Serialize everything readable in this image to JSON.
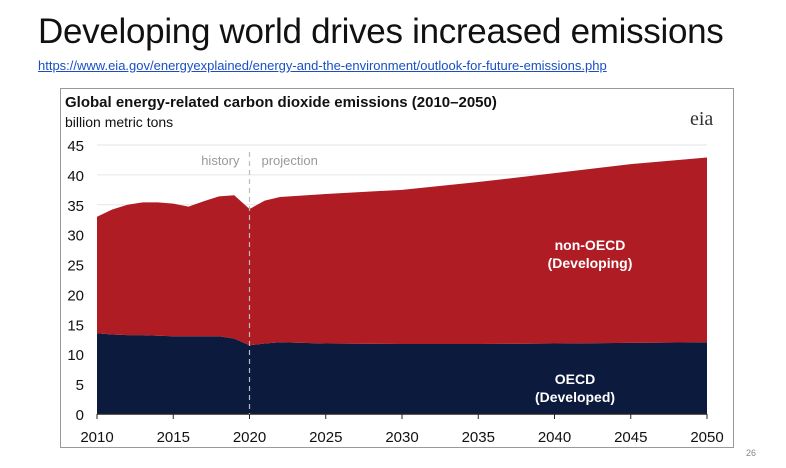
{
  "slide": {
    "title": "Developing world drives increased emissions",
    "link": "https://www.eia.gov/energyexplained/energy-and-the-environment/outlook-for-future-emissions.php",
    "page_number": "26"
  },
  "logo_text": "eia",
  "chart_data": {
    "type": "area",
    "stacked": true,
    "title": "Global energy-related carbon dioxide emissions (2010–2050)",
    "ylabel": "billion metric tons",
    "xlabel": "",
    "xlim": [
      2010,
      2050
    ],
    "ylim": [
      0,
      45
    ],
    "xticks": [
      "2010",
      "2015",
      "2020",
      "2025",
      "2030",
      "2035",
      "2040",
      "2045",
      "2050"
    ],
    "yticks": [
      "0",
      "5",
      "10",
      "15",
      "20",
      "25",
      "30",
      "35",
      "40",
      "45"
    ],
    "grid": true,
    "annotations": {
      "history": "history",
      "projection": "projection",
      "divider_year": 2020
    },
    "x": [
      2010,
      2011,
      2012,
      2013,
      2014,
      2015,
      2016,
      2017,
      2018,
      2019,
      2020,
      2021,
      2022,
      2025,
      2030,
      2035,
      2040,
      2045,
      2050
    ],
    "series": [
      {
        "name": "OECD",
        "label_line1": "OECD",
        "label_line2": "(Developed)",
        "color": "#0b1a3d",
        "values": [
          13.5,
          13.3,
          13.2,
          13.2,
          13.1,
          13.0,
          13.0,
          13.0,
          13.0,
          12.6,
          11.5,
          11.8,
          12.0,
          11.8,
          11.7,
          11.7,
          11.8,
          11.9,
          12.0
        ]
      },
      {
        "name": "non-OECD",
        "label_line1": "non-OECD",
        "label_line2": "(Developing)",
        "color": "#b01c24",
        "values": [
          19.5,
          20.9,
          21.8,
          22.2,
          22.3,
          22.2,
          21.7,
          22.6,
          23.4,
          24.0,
          22.8,
          23.9,
          24.3,
          25.0,
          25.8,
          27.1,
          28.5,
          29.9,
          30.9
        ]
      }
    ]
  }
}
